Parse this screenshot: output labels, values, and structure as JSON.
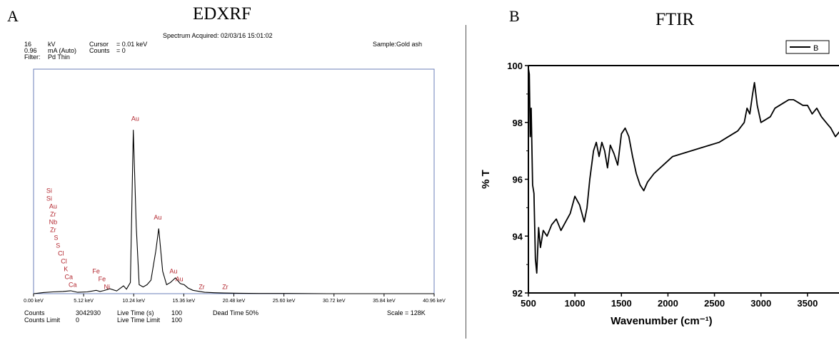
{
  "panelA": {
    "letter": "A",
    "title": "EDXRF",
    "acquired": "Spectrum Acquired: 02/03/16 15:01:02",
    "sample": "Sample:Gold ash",
    "header_rows": [
      [
        "16",
        "kV",
        "Cursor",
        "= 0.01 keV"
      ],
      [
        "0.96",
        "mA (Auto)",
        "Counts",
        "= 0"
      ],
      [
        "Filter:",
        "Pd Thin",
        "",
        ""
      ]
    ],
    "footer": {
      "counts_label": "Counts",
      "counts_value": "3042930",
      "counts_limit_label": "Counts Limit",
      "counts_limit_value": "0",
      "live_time_label": "Live Time (s)",
      "live_time_value": "100",
      "live_time_limit_label": "Live Time Limit",
      "live_time_limit_value": "100",
      "dead_time": "Dead Time  50%",
      "scale": "Scale = 128K"
    }
  },
  "panelB": {
    "letter": "B",
    "title": "FTIR"
  },
  "chart_data": [
    {
      "type": "line",
      "xlabel": "",
      "ylabel": "",
      "xlim": [
        0,
        40.96
      ],
      "ylim": [
        0,
        1
      ],
      "x_ticks": [
        0,
        5.12,
        10.24,
        15.36,
        20.48,
        25.6,
        30.72,
        35.84,
        40.96
      ],
      "x_tick_labels": [
        "0.00 keV",
        "5.12 keV",
        "10.24 keV",
        "15.36 keV",
        "20.48 keV",
        "25.60 keV",
        "30.72 keV",
        "35.84 keV",
        "40.96 keV"
      ],
      "series": [
        {
          "x": [
            0,
            1,
            2,
            3,
            3.8,
            4.5,
            5.5,
            6.4,
            6.8,
            7.2,
            7.8,
            8.5,
            9.2,
            9.5,
            9.9,
            10.2,
            10.5,
            10.8,
            11.2,
            11.6,
            12.0,
            12.5,
            12.8,
            13.2,
            13.6,
            14.0,
            14.5,
            15.0,
            15.4,
            15.8,
            16.3,
            17.0,
            17.5,
            18.5,
            19.5,
            21,
            23,
            26,
            30,
            35,
            40.96
          ],
          "y": [
            0.0,
            0.005,
            0.008,
            0.01,
            0.013,
            0.006,
            0.008,
            0.015,
            0.01,
            0.014,
            0.022,
            0.012,
            0.035,
            0.02,
            0.05,
            0.73,
            0.3,
            0.04,
            0.03,
            0.04,
            0.06,
            0.19,
            0.29,
            0.1,
            0.04,
            0.05,
            0.07,
            0.045,
            0.04,
            0.025,
            0.015,
            0.01,
            0.006,
            0.004,
            0.003,
            0.002,
            0.001,
            0.001,
            0.0,
            0.0,
            0.0
          ]
        }
      ],
      "annotations": [
        {
          "text": "Au",
          "x": 10.4,
          "y": 0.77
        },
        {
          "text": "Au",
          "x": 12.7,
          "y": 0.33
        },
        {
          "text": "Au",
          "x": 14.3,
          "y": 0.09
        },
        {
          "text": "Au",
          "x": 14.9,
          "y": 0.055
        },
        {
          "text": "Zr",
          "x": 17.2,
          "y": 0.02
        },
        {
          "text": "Zr",
          "x": 19.6,
          "y": 0.02
        },
        {
          "text": "Fe",
          "x": 6.4,
          "y": 0.09
        },
        {
          "text": "Fe",
          "x": 7.0,
          "y": 0.055
        },
        {
          "text": "Ni",
          "x": 7.5,
          "y": 0.02
        },
        {
          "text": "Si",
          "x": 1.6,
          "y": 0.45
        },
        {
          "text": "Si",
          "x": 1.6,
          "y": 0.415
        },
        {
          "text": "Au",
          "x": 2.0,
          "y": 0.38
        },
        {
          "text": "Zr",
          "x": 2.0,
          "y": 0.345
        },
        {
          "text": "Nb",
          "x": 2.0,
          "y": 0.31
        },
        {
          "text": "Zr",
          "x": 2.0,
          "y": 0.275
        },
        {
          "text": "S",
          "x": 2.3,
          "y": 0.24
        },
        {
          "text": "S",
          "x": 2.5,
          "y": 0.205
        },
        {
          "text": "Cl",
          "x": 2.8,
          "y": 0.17
        },
        {
          "text": "Cl",
          "x": 3.1,
          "y": 0.135
        },
        {
          "text": "K",
          "x": 3.3,
          "y": 0.1
        },
        {
          "text": "Ca",
          "x": 3.6,
          "y": 0.065
        },
        {
          "text": "Ca",
          "x": 4.0,
          "y": 0.03
        }
      ],
      "grid": false
    },
    {
      "type": "line",
      "xlabel": "Wavenumber (cm⁻¹)",
      "ylabel": "% T",
      "xlim": [
        500,
        3900
      ],
      "ylim": [
        92,
        100
      ],
      "x_ticks": [
        500,
        1000,
        1500,
        2000,
        2500,
        3000,
        3500
      ],
      "y_ticks": [
        92,
        94,
        96,
        98,
        100
      ],
      "legend": "top-right",
      "series": [
        {
          "name": "B",
          "x": [
            500,
            510,
            520,
            530,
            545,
            560,
            575,
            590,
            610,
            630,
            660,
            700,
            750,
            800,
            850,
            900,
            950,
            1000,
            1050,
            1100,
            1130,
            1160,
            1200,
            1230,
            1260,
            1290,
            1320,
            1350,
            1380,
            1420,
            1460,
            1500,
            1540,
            1580,
            1620,
            1660,
            1700,
            1740,
            1780,
            1850,
            1950,
            2050,
            2150,
            2250,
            2350,
            2450,
            2550,
            2650,
            2750,
            2820,
            2850,
            2880,
            2910,
            2930,
            2960,
            3000,
            3050,
            3100,
            3150,
            3200,
            3250,
            3300,
            3350,
            3400,
            3450,
            3500,
            3550,
            3600,
            3650,
            3700,
            3750,
            3800,
            3850,
            3900
          ],
          "y": [
            99.9,
            99.7,
            97.5,
            98.5,
            95.8,
            95.5,
            93.2,
            92.7,
            94.3,
            93.6,
            94.2,
            94.0,
            94.4,
            94.6,
            94.2,
            94.5,
            94.8,
            95.4,
            95.1,
            94.5,
            95.0,
            96.0,
            97.0,
            97.3,
            96.8,
            97.3,
            97.0,
            96.4,
            97.2,
            96.9,
            96.5,
            97.6,
            97.8,
            97.5,
            96.8,
            96.2,
            95.8,
            95.6,
            95.9,
            96.2,
            96.5,
            96.8,
            96.9,
            97.0,
            97.1,
            97.2,
            97.3,
            97.5,
            97.7,
            98.0,
            98.5,
            98.3,
            99.0,
            99.4,
            98.6,
            98.0,
            98.1,
            98.2,
            98.5,
            98.6,
            98.7,
            98.8,
            98.8,
            98.7,
            98.6,
            98.6,
            98.3,
            98.5,
            98.2,
            98.0,
            97.8,
            97.5,
            97.7,
            97.3
          ]
        }
      ],
      "grid": false
    }
  ]
}
